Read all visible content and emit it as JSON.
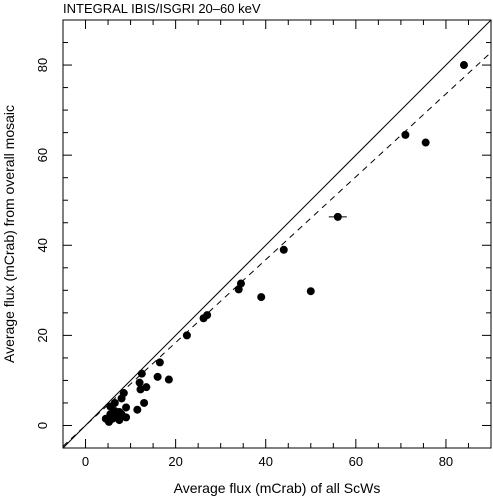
{
  "chart_data": {
    "type": "scatter",
    "title": "INTEGRAL IBIS/ISGRI 20–60 keV",
    "xlabel": "Average flux (mCrab) of all ScWs",
    "ylabel": "Average flux (mCrab) from overall mosaic",
    "xlim": [
      -5,
      90
    ],
    "ylim": [
      -5,
      90
    ],
    "x_ticks": [
      0,
      20,
      40,
      60,
      80
    ],
    "y_ticks": [
      0,
      20,
      40,
      60,
      80
    ],
    "grid": false,
    "legend": "none",
    "lines": [
      {
        "style": "solid",
        "slope": 1.0,
        "intercept": 0
      },
      {
        "style": "dashed",
        "slope": 0.92,
        "intercept": 0
      }
    ],
    "points": [
      {
        "x": 84,
        "y": 80
      },
      {
        "x": 71,
        "y": 64.5
      },
      {
        "x": 75.5,
        "y": 62.8
      },
      {
        "x": 56,
        "y": 46.3,
        "xerr": 2
      },
      {
        "x": 44,
        "y": 39
      },
      {
        "x": 50,
        "y": 29.8
      },
      {
        "x": 39,
        "y": 28.5
      },
      {
        "x": 34.5,
        "y": 31.5
      },
      {
        "x": 34,
        "y": 30.2
      },
      {
        "x": 27,
        "y": 24.5
      },
      {
        "x": 26.2,
        "y": 23.8
      },
      {
        "x": 22.5,
        "y": 20
      },
      {
        "x": 16.5,
        "y": 14
      },
      {
        "x": 18.5,
        "y": 10.2
      },
      {
        "x": 16,
        "y": 10.8
      },
      {
        "x": 12.5,
        "y": 11.5
      },
      {
        "x": 12,
        "y": 9.5
      },
      {
        "x": 12.2,
        "y": 8
      },
      {
        "x": 13.5,
        "y": 8.5
      },
      {
        "x": 11.5,
        "y": 3.5
      },
      {
        "x": 13,
        "y": 5
      },
      {
        "x": 8.5,
        "y": 7.2
      },
      {
        "x": 8,
        "y": 6
      },
      {
        "x": 9,
        "y": 4
      },
      {
        "x": 6.5,
        "y": 5
      },
      {
        "x": 5.5,
        "y": 4.2
      },
      {
        "x": 6.5,
        "y": 3.2
      },
      {
        "x": 7.5,
        "y": 3
      },
      {
        "x": 8,
        "y": 2.5
      },
      {
        "x": 7,
        "y": 2
      },
      {
        "x": 9,
        "y": 1.8
      },
      {
        "x": 5.5,
        "y": 2.5
      },
      {
        "x": 6,
        "y": 1.5
      },
      {
        "x": 5,
        "y": 1.2
      },
      {
        "x": 4.5,
        "y": 1.5
      },
      {
        "x": 7.5,
        "y": 1.2
      },
      {
        "x": 5.2,
        "y": 0.8
      }
    ]
  }
}
